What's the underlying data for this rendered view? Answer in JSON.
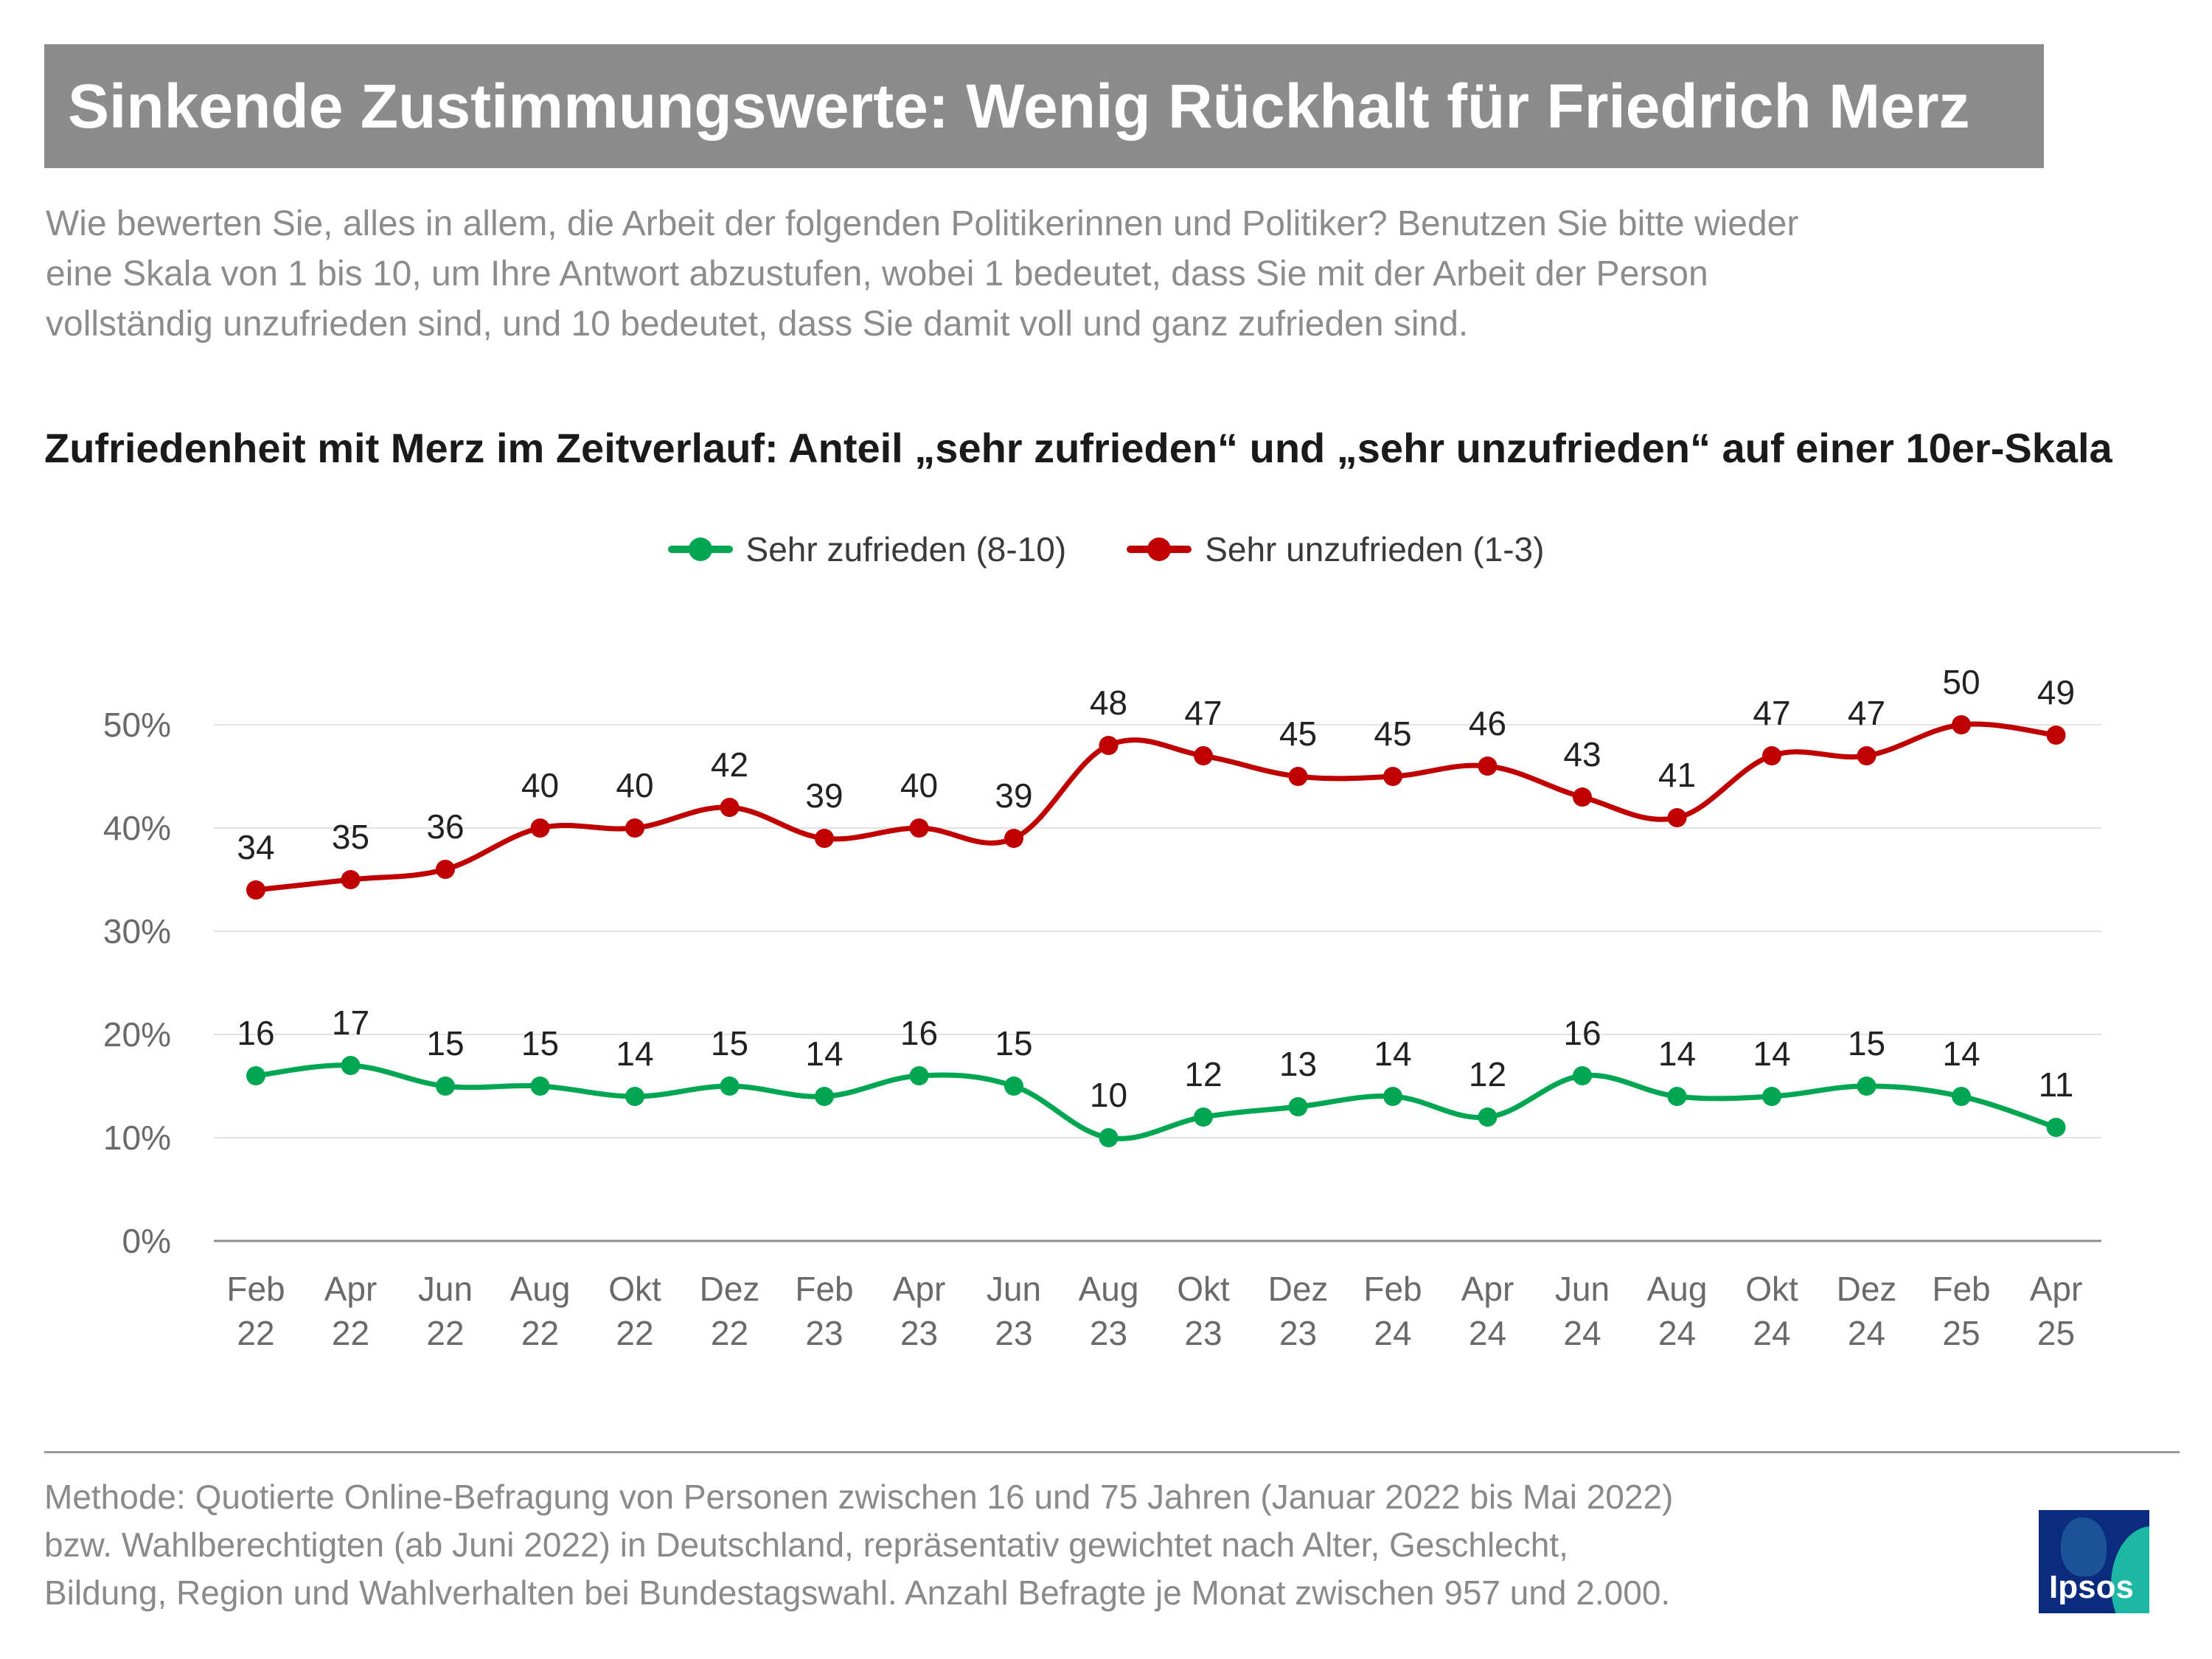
{
  "header": {
    "title": "Sinkende Zustimmungswerte: Wenig Rückhalt für Friedrich Merz"
  },
  "question": {
    "lines": [
      "Wie bewerten Sie, alles in allem, die Arbeit der folgenden Politikerinnen und Politiker? Benutzen Sie bitte wieder",
      "eine Skala von 1 bis 10, um Ihre Antwort abzustufen, wobei 1 bedeutet, dass Sie mit der Arbeit der Person",
      "vollständig unzufrieden sind, und 10 bedeutet, dass Sie damit voll und ganz zufrieden sind."
    ]
  },
  "chart_data": {
    "type": "line",
    "title": "Zufriedenheit mit Merz im Zeitverlauf: Anteil „sehr zufrieden“ und „sehr unzufrieden“ auf einer 10er-Skala",
    "categories": [
      [
        "Feb",
        "22"
      ],
      [
        "Apr",
        "22"
      ],
      [
        "Jun",
        "22"
      ],
      [
        "Aug",
        "22"
      ],
      [
        "Okt",
        "22"
      ],
      [
        "Dez",
        "22"
      ],
      [
        "Feb",
        "23"
      ],
      [
        "Apr",
        "23"
      ],
      [
        "Jun",
        "23"
      ],
      [
        "Aug",
        "23"
      ],
      [
        "Okt",
        "23"
      ],
      [
        "Dez",
        "23"
      ],
      [
        "Feb",
        "24"
      ],
      [
        "Apr",
        "24"
      ],
      [
        "Jun",
        "24"
      ],
      [
        "Aug",
        "24"
      ],
      [
        "Okt",
        "24"
      ],
      [
        "Dez",
        "24"
      ],
      [
        "Feb",
        "25"
      ],
      [
        "Apr",
        "25"
      ]
    ],
    "series": [
      {
        "name": "Sehr zufrieden (8-10)",
        "color": "#00a651",
        "values": [
          16,
          17,
          15,
          15,
          14,
          15,
          14,
          16,
          15,
          10,
          12,
          13,
          14,
          12,
          16,
          14,
          14,
          15,
          14,
          11
        ],
        "label_position": "above"
      },
      {
        "name": "Sehr unzufrieden (1-3)",
        "color": "#c00000",
        "values": [
          34,
          35,
          36,
          40,
          40,
          42,
          39,
          40,
          39,
          48,
          47,
          45,
          45,
          46,
          43,
          41,
          47,
          47,
          50,
          49
        ],
        "label_position": "above"
      }
    ],
    "yticks": [
      0,
      10,
      20,
      30,
      40,
      50
    ],
    "ytick_labels": [
      "0%",
      "10%",
      "20%",
      "30%",
      "40%",
      "50%"
    ],
    "ylim": [
      0,
      50
    ],
    "grid": true,
    "legend": "top-center",
    "xlabel": "",
    "ylabel": ""
  },
  "footnote": {
    "lines": [
      "Methode: Quotierte Online-Befragung von Personen zwischen 16 und 75 Jahren (Januar 2022 bis Mai 2022)",
      "bzw. Wahlberechtigten (ab Juni 2022) in Deutschland, repräsentativ gewichtet nach Alter, Geschlecht,",
      "Bildung, Region und Wahlverhalten bei Bundestagswahl. Anzahl Befragte je Monat zwischen 957 und 2.000."
    ]
  },
  "logo": {
    "text": "Ipsos",
    "colors": {
      "background": "#0a2b7e",
      "arc": "#1db8a3"
    }
  }
}
